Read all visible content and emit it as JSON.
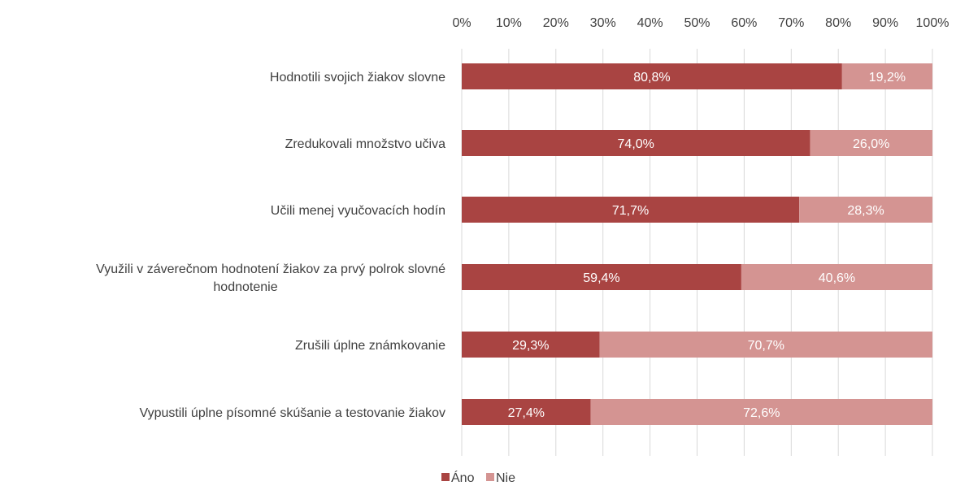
{
  "chart_data": {
    "type": "bar",
    "orientation": "horizontal",
    "stacked": true,
    "categories": [
      "Hodnotili svojich žiakov slovne",
      "Zredukovali množstvo učiva",
      "Učili menej vyučovacích hodín",
      "Využili v záverečnom hodnotení žiakov za prvý polrok slovné hodnotenie",
      "Zrušili úplne známkovanie",
      "Vypustili úplne písomné skúšanie a testovanie žiakov"
    ],
    "series": [
      {
        "name": "Áno",
        "color": "#a94442",
        "values": [
          80.8,
          74.0,
          71.7,
          59.4,
          29.3,
          27.4
        ],
        "labels": [
          "80,8%",
          "74,0%",
          "71,7%",
          "59,4%",
          "29,3%",
          "27,4%"
        ]
      },
      {
        "name": "Nie",
        "color": "#d49492",
        "values": [
          19.2,
          26.0,
          28.3,
          40.6,
          70.7,
          72.6
        ],
        "labels": [
          "19,2%",
          "26,0%",
          "28,3%",
          "40,6%",
          "70,7%",
          "72,6%"
        ]
      }
    ],
    "xlim": [
      0,
      100
    ],
    "x_ticks": [
      "0%",
      "10%",
      "20%",
      "30%",
      "40%",
      "50%",
      "60%",
      "70%",
      "80%",
      "90%",
      "100%"
    ],
    "x_axis_position": "top",
    "grid": true,
    "legend_position": "bottom",
    "title": "",
    "xlabel": "",
    "ylabel": ""
  }
}
